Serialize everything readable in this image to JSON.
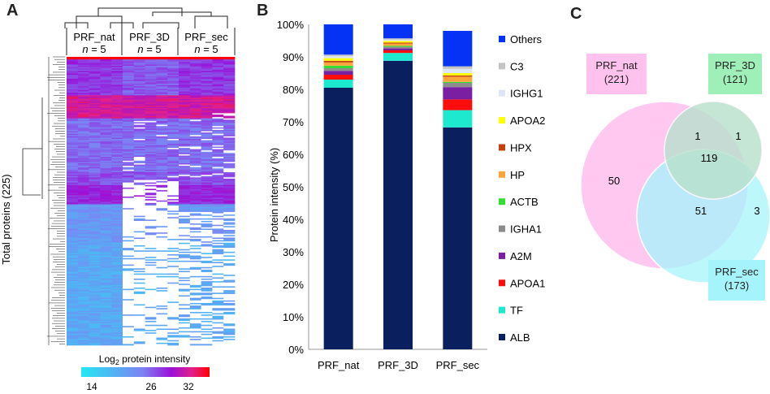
{
  "panels": {
    "a": "A",
    "b": "B",
    "c": "C"
  },
  "heatmap": {
    "y_axis_label": "Total proteins (225)",
    "groups": [
      {
        "name": "PRF_nat",
        "n_label": "n",
        "n_value": "= 5"
      },
      {
        "name": "PRF_3D",
        "n_label": "n",
        "n_value": "= 5"
      },
      {
        "name": "PRF_sec",
        "n_label": "n",
        "n_value": "= 5"
      }
    ],
    "colorbar_title_prefix": "Log",
    "colorbar_title_sub": "2",
    "colorbar_title_suffix": " protein intensity",
    "colorbar_ticks": [
      "14",
      "26",
      "32"
    ],
    "colors": {
      "low": "#22e8f2",
      "mid": "#7c82f4",
      "high1": "#9a10d8",
      "high2": "#e0208c",
      "max": "#ff0000"
    }
  },
  "chart_data": [
    {
      "type": "bar",
      "stacked": true,
      "title": "",
      "xlabel": "",
      "ylabel": "Protein intensity (%)",
      "ylim": [
        0,
        100
      ],
      "yticks": [
        "0%",
        "10%",
        "20%",
        "30%",
        "40%",
        "50%",
        "60%",
        "70%",
        "80%",
        "90%",
        "100%"
      ],
      "categories": [
        "PRF_nat",
        "PRF_3D",
        "PRF_sec"
      ],
      "series": [
        {
          "name": "ALB",
          "color": "#0a1f5e",
          "values": [
            80.5,
            88.8,
            68.3
          ]
        },
        {
          "name": "TF",
          "color": "#1de9cf",
          "values": [
            2.5,
            2.4,
            5.3
          ]
        },
        {
          "name": "APOA1",
          "color": "#ff0d0d",
          "values": [
            1.5,
            0.8,
            3.3
          ]
        },
        {
          "name": "A2M",
          "color": "#7a1fa2",
          "values": [
            1.2,
            0.6,
            3.8
          ]
        },
        {
          "name": "IGHA1",
          "color": "#8c8c8c",
          "values": [
            0.8,
            0.5,
            1.3
          ]
        },
        {
          "name": "ACTB",
          "color": "#33dd33",
          "values": [
            0.8,
            0.3,
            0.3
          ]
        },
        {
          "name": "HP",
          "color": "#ffa43a",
          "values": [
            1.0,
            0.7,
            1.6
          ]
        },
        {
          "name": "HPX",
          "color": "#c2410c",
          "values": [
            0.5,
            0.3,
            0.4
          ]
        },
        {
          "name": "APOA2",
          "color": "#ffff00",
          "values": [
            0.8,
            0.5,
            0.7
          ]
        },
        {
          "name": "IGHG1",
          "color": "#dde6f7",
          "values": [
            0.6,
            0.4,
            1.3
          ]
        },
        {
          "name": "C3",
          "color": "#c4c4c4",
          "values": [
            0.5,
            0.4,
            0.8
          ]
        },
        {
          "name": "Others",
          "color": "#0433f5",
          "values": [
            9.3,
            4.3,
            10.9
          ]
        }
      ]
    },
    {
      "type": "venn",
      "sets": [
        {
          "name": "PRF_nat",
          "count": "(221)",
          "color": "#ffb6ec"
        },
        {
          "name": "PRF_3D",
          "count": "(121)",
          "color": "#9ff0b8"
        },
        {
          "name": "PRF_sec",
          "count": "(173)",
          "color": "#a6f4fb"
        }
      ],
      "regions": [
        {
          "sets": [
            "PRF_nat"
          ],
          "value": "50"
        },
        {
          "sets": [
            "PRF_nat",
            "PRF_3D"
          ],
          "value": "1"
        },
        {
          "sets": [
            "PRF_3D"
          ],
          "value": "1"
        },
        {
          "sets": [
            "PRF_nat",
            "PRF_3D",
            "PRF_sec"
          ],
          "value": "119"
        },
        {
          "sets": [
            "PRF_nat",
            "PRF_sec"
          ],
          "value": "51"
        },
        {
          "sets": [
            "PRF_sec"
          ],
          "value": "3"
        }
      ]
    }
  ]
}
